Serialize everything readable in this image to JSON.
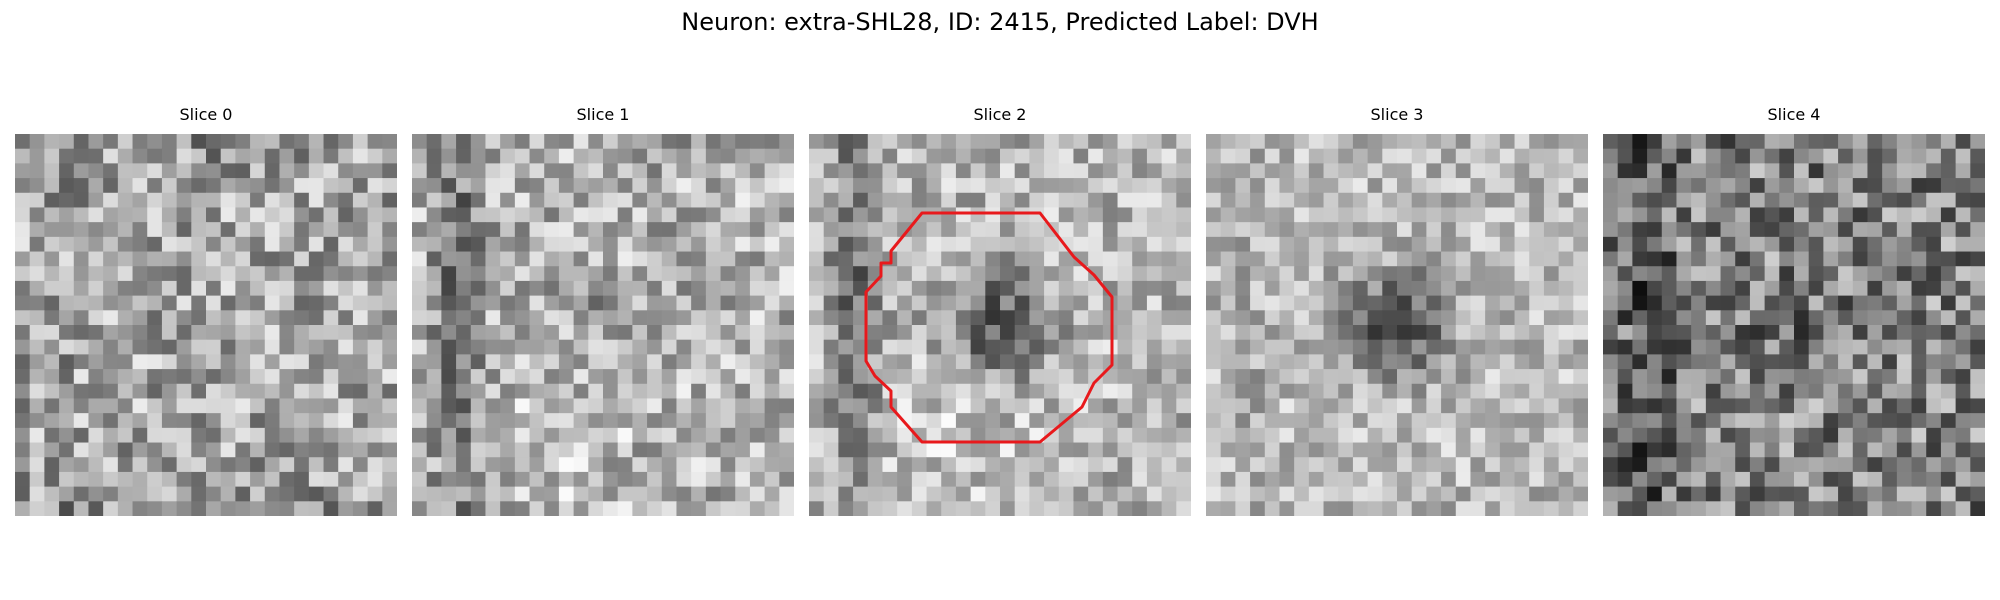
{
  "figure": {
    "title": "Neuron: extra-SHL28, ID: 2415, Predicted Label: DVH"
  },
  "panels": [
    {
      "title": "Slice 0",
      "seed": 17,
      "base": 168,
      "spread": 86,
      "dark_center": 0,
      "dark_left": 0.1,
      "bright_low": 0,
      "dark_corners": 0.55
    },
    {
      "title": "Slice 1",
      "seed": 53,
      "base": 178,
      "spread": 80,
      "dark_center": 0.25,
      "dark_left": 0.75,
      "bright_low": 0.55,
      "dark_corners": 0.15
    },
    {
      "title": "Slice 2",
      "seed": 97,
      "base": 182,
      "spread": 70,
      "dark_center": 1.05,
      "dark_left": 0.9,
      "bright_low": 0.45,
      "dark_corners": 0.1,
      "roi": true
    },
    {
      "title": "Slice 3",
      "seed": 131,
      "base": 186,
      "spread": 62,
      "dark_center": 1.15,
      "dark_left": 0.15,
      "bright_low": 0.15,
      "dark_corners": 0.1
    },
    {
      "title": "Slice 4",
      "seed": 211,
      "base": 132,
      "spread": 96,
      "dark_center": 0.2,
      "dark_left": 0.6,
      "bright_low": 0,
      "dark_corners": 0.25
    }
  ],
  "roi_color": "#e8191c",
  "colormap": "gray"
}
